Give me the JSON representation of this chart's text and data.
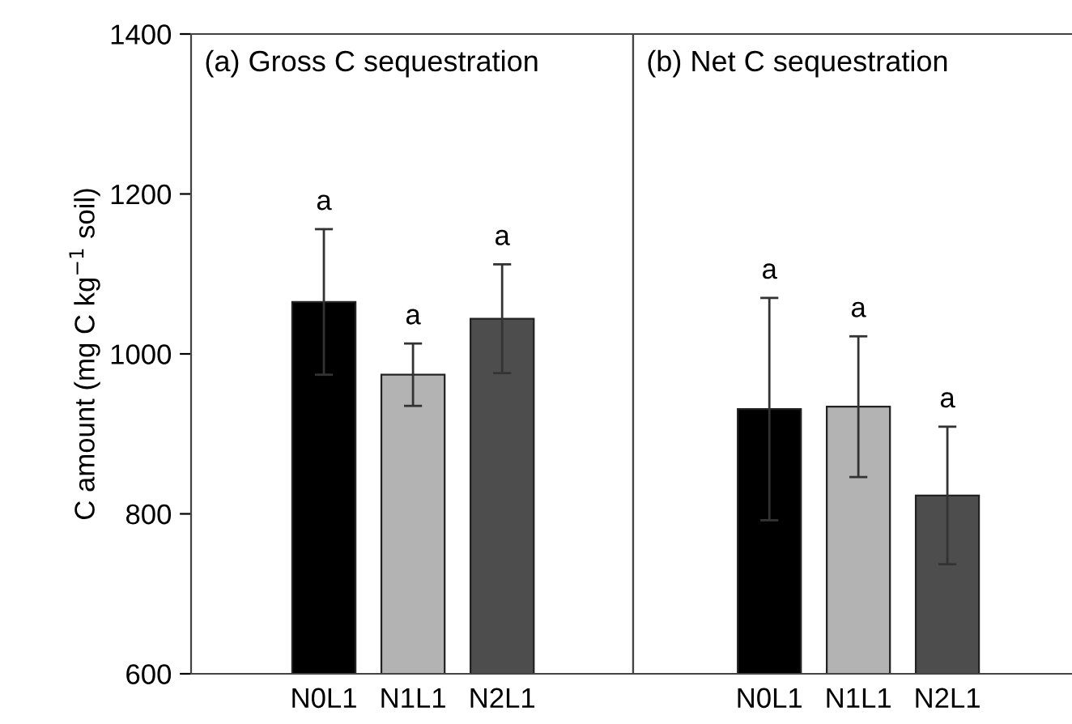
{
  "chart_data": [
    {
      "type": "bar",
      "title": "(a) Gross C sequestration",
      "ylabel": "C amount (mg C kg$^{−1}$ soil)",
      "categories": [
        "N0L1",
        "N1L1",
        "N2L1"
      ],
      "values": [
        1065,
        974,
        1044
      ],
      "errors": [
        91,
        39,
        68
      ],
      "colors": [
        "#000000",
        "#b3b3b3",
        "#4d4d4d"
      ],
      "ylim": [
        600,
        1400
      ],
      "yticks": [
        600,
        800,
        1000,
        1200,
        1400
      ],
      "grid": false,
      "annotations": [
        "a",
        "a",
        "a"
      ]
    },
    {
      "type": "bar",
      "title": "(b) Net C sequestration",
      "categories": [
        "N0L1",
        "N1L1",
        "N2L1"
      ],
      "values": [
        931,
        934,
        823
      ],
      "errors": [
        139,
        88,
        86
      ],
      "colors": [
        "#000000",
        "#b3b3b3",
        "#4d4d4d"
      ],
      "ylim": [
        600,
        1400
      ],
      "yticks": [
        600,
        800,
        1000,
        1200,
        1400
      ],
      "tick_labels": "x",
      "grid": false,
      "annotations": [
        "a",
        "a",
        "a"
      ]
    }
  ]
}
